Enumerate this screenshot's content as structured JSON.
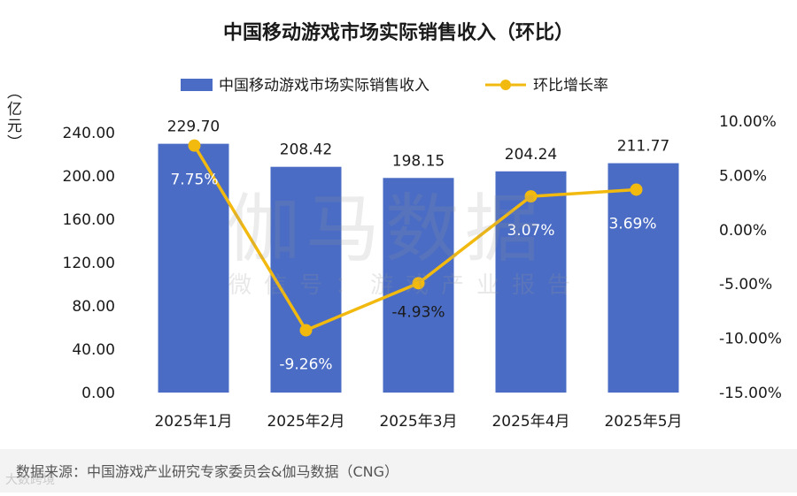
{
  "chart_data": {
    "type": "bar+line",
    "title": "中国移动游戏市场实际销售收入（环比）",
    "categories": [
      "2025年1月",
      "2025年2月",
      "2025年3月",
      "2025年4月",
      "2025年5月"
    ],
    "series": [
      {
        "name": "中国移动游戏市场实际销售收入",
        "type": "bar",
        "axis": "left",
        "values": [
          229.7,
          208.42,
          198.15,
          204.24,
          211.77
        ],
        "labels": [
          "229.70",
          "208.42",
          "198.15",
          "204.24",
          "211.77"
        ],
        "color": "#4a6cc4"
      },
      {
        "name": "环比增长率",
        "type": "line",
        "axis": "right",
        "values": [
          7.75,
          -9.26,
          -4.93,
          3.07,
          3.69
        ],
        "labels": [
          "7.75%",
          "-9.26%",
          "-4.93%",
          "3.07%",
          "3.69%"
        ],
        "color": "#f2b90f"
      }
    ],
    "ylabel": "（亿元）",
    "ylim_left": [
      0,
      240
    ],
    "yticks_left": [
      "240.00",
      "200.00",
      "160.00",
      "120.00",
      "80.00",
      "40.00",
      "0.00"
    ],
    "ylim_right": [
      -15,
      10
    ],
    "yticks_right": [
      "10.00%",
      "5.00%",
      "0.00%",
      "-5.00%",
      "-10.00%",
      "-15.00%"
    ],
    "legend_position": "top",
    "grid": false
  },
  "source": "数据来源：中国游戏产业研究专家委员会&伽马数据（CNG）",
  "watermark": {
    "main": "伽马数据",
    "sub": "微信号：游戏产业报告"
  },
  "corner_mark": "大数跨境"
}
